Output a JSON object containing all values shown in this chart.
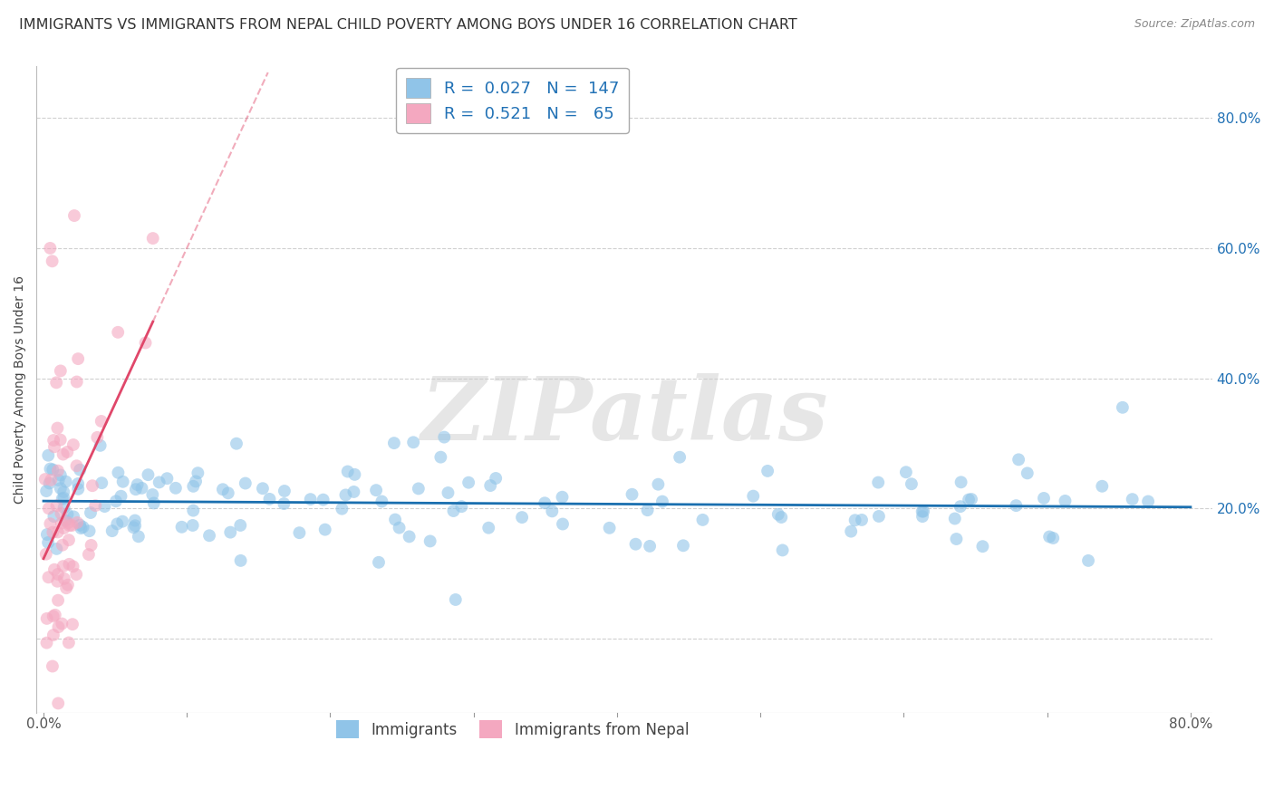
{
  "title": "IMMIGRANTS VS IMMIGRANTS FROM NEPAL CHILD POVERTY AMONG BOYS UNDER 16 CORRELATION CHART",
  "source": "Source: ZipAtlas.com",
  "ylabel": "Child Poverty Among Boys Under 16",
  "xlim": [
    -0.005,
    0.815
  ],
  "ylim": [
    -0.115,
    0.88
  ],
  "xtick_pos": [
    0.0,
    0.1,
    0.2,
    0.3,
    0.4,
    0.5,
    0.6,
    0.7,
    0.8
  ],
  "ytick_pos": [
    0.0,
    0.2,
    0.4,
    0.6,
    0.8
  ],
  "blue_color": "#90c4e8",
  "pink_color": "#f4a8c0",
  "blue_line_color": "#1a6faf",
  "pink_line_color": "#e0476a",
  "grid_color": "#d0d0d0",
  "watermark_text": "ZIPatlas",
  "watermark_color": "#cecece",
  "background_color": "#ffffff",
  "title_fontsize": 11.5,
  "blue_R": 0.027,
  "blue_N": 147,
  "pink_R": 0.521,
  "pink_N": 65,
  "tick_label_color": "#2171b5",
  "legend1_label1": "R =  0.027   N =  147",
  "legend1_label2": "R =  0.521   N =   65",
  "legend2_label1": "Immigrants",
  "legend2_label2": "Immigrants from Nepal"
}
